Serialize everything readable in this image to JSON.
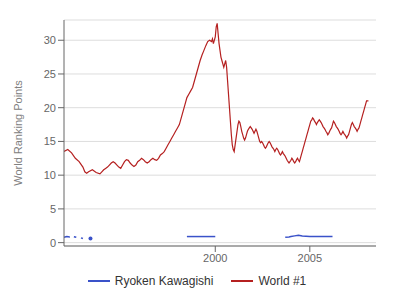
{
  "chart_data": {
    "type": "line",
    "title": "",
    "ylabel": "World Ranking Points",
    "xlim": [
      1992.0,
      2008.5
    ],
    "ylim": [
      -0.5,
      33
    ],
    "xticks": [
      2000,
      2005
    ],
    "yticks": [
      0,
      5,
      10,
      15,
      20,
      25,
      30
    ],
    "grid": true,
    "legend": "bottom",
    "series": [
      {
        "name": "Ryoken Kawagishi",
        "color": "#3a52c9",
        "line_style": "dashed",
        "marker": "none",
        "x": [
          1992.0,
          1992.15,
          1992.3,
          1992.5,
          1992.65
        ],
        "values": [
          0.8,
          0.9,
          0.85,
          0.9,
          0.8
        ]
      },
      {
        "name": "Ryoken Kawagishi",
        "color": "#3a52c9",
        "line_style": "dashed",
        "marker": "none",
        "x": [
          1992.9,
          1993.0
        ],
        "values": [
          0.7,
          0.6
        ]
      },
      {
        "name": "Ryoken Kawagishi",
        "color": "#3a52c9",
        "line_style": "none",
        "marker": "circle",
        "x": [
          1993.4
        ],
        "values": [
          0.6
        ]
      },
      {
        "name": "Ryoken Kawagishi",
        "color": "#3a52c9",
        "line_style": "solid",
        "marker": "none",
        "x": [
          1998.5,
          1998.7,
          1998.9,
          1999.0,
          1999.2,
          1999.4,
          1999.6,
          1999.8,
          2000.0
        ],
        "values": [
          0.9,
          0.9,
          0.9,
          0.9,
          0.9,
          0.9,
          0.9,
          0.9,
          0.9
        ]
      },
      {
        "name": "Ryoken Kawagishi",
        "color": "#3a52c9",
        "line_style": "solid",
        "marker": "none",
        "x": [
          2003.7,
          2003.9,
          2004.0,
          2004.2,
          2004.4,
          2004.6,
          2004.8,
          2005.0,
          2005.2,
          2005.5,
          2005.8,
          2006.0,
          2006.2
        ],
        "values": [
          0.8,
          0.85,
          0.9,
          1.0,
          1.1,
          1.0,
          0.95,
          0.9,
          0.9,
          0.9,
          0.9,
          0.9,
          0.9
        ]
      },
      {
        "name": "World #1",
        "color": "#b52020",
        "line_style": "solid",
        "marker": "none",
        "x": [
          1992.0,
          1992.2,
          1992.4,
          1992.6,
          1992.8,
          1993.0,
          1993.1,
          1993.2,
          1993.3,
          1993.5,
          1993.7,
          1993.9,
          1994.0,
          1994.1,
          1994.2,
          1994.3,
          1994.4,
          1994.5,
          1994.6,
          1994.7,
          1994.8,
          1994.9,
          1995.0,
          1995.1,
          1995.2,
          1995.3,
          1995.4,
          1995.5,
          1995.6,
          1995.7,
          1995.8,
          1995.9,
          1996.0,
          1996.1,
          1996.2,
          1996.3,
          1996.4,
          1996.5,
          1996.6,
          1996.7,
          1996.8,
          1996.9,
          1997.0,
          1997.1,
          1997.2,
          1997.3,
          1997.4,
          1997.5,
          1997.6,
          1997.7,
          1997.8,
          1997.9,
          1998.0,
          1998.1,
          1998.2,
          1998.3,
          1998.4,
          1998.5,
          1998.6,
          1998.7,
          1998.8,
          1998.9,
          1999.0,
          1999.1,
          1999.2,
          1999.3,
          1999.4,
          1999.5,
          1999.6,
          1999.7,
          1999.8,
          1999.85,
          1999.9,
          2000.0,
          2000.05,
          2000.1,
          2000.15,
          2000.2,
          2000.25,
          2000.3,
          2000.35,
          2000.4,
          2000.45,
          2000.5,
          2000.55,
          2000.6,
          2000.65,
          2000.7,
          2000.75,
          2000.8,
          2000.85,
          2000.9,
          2000.95,
          2001.0,
          2001.05,
          2001.1,
          2001.15,
          2001.2,
          2001.25,
          2001.3,
          2001.35,
          2001.4,
          2001.45,
          2001.5,
          2001.55,
          2001.6,
          2001.65,
          2001.7,
          2001.75,
          2001.8,
          2001.85,
          2001.9,
          2001.95,
          2002.0,
          2002.05,
          2002.1,
          2002.15,
          2002.2,
          2002.25,
          2002.3,
          2002.35,
          2002.4,
          2002.45,
          2002.5,
          2002.55,
          2002.6,
          2002.65,
          2002.7,
          2002.75,
          2002.8,
          2002.85,
          2002.9,
          2002.95,
          2003.0,
          2003.05,
          2003.1,
          2003.15,
          2003.2,
          2003.25,
          2003.3,
          2003.35,
          2003.4,
          2003.45,
          2003.5,
          2003.55,
          2003.6,
          2003.65,
          2003.7,
          2003.75,
          2003.8,
          2003.85,
          2003.9,
          2003.95,
          2004.0,
          2004.05,
          2004.1,
          2004.15,
          2004.2,
          2004.25,
          2004.3,
          2004.35,
          2004.4,
          2004.45,
          2004.5,
          2004.55,
          2004.6,
          2004.65,
          2004.7,
          2004.75,
          2004.8,
          2004.85,
          2004.9,
          2004.95,
          2005.0,
          2005.05,
          2005.1,
          2005.15,
          2005.2,
          2005.25,
          2005.3,
          2005.35,
          2005.4,
          2005.45,
          2005.5,
          2005.55,
          2005.6,
          2005.65,
          2005.7,
          2005.75,
          2005.8,
          2005.85,
          2005.9,
          2005.95,
          2006.0,
          2006.05,
          2006.1,
          2006.15,
          2006.2,
          2006.25,
          2006.3,
          2006.35,
          2006.4,
          2006.45,
          2006.5,
          2006.55,
          2006.6,
          2006.65,
          2006.7,
          2006.75,
          2006.8,
          2006.85,
          2006.9,
          2006.95,
          2007.0,
          2007.05,
          2007.1,
          2007.15,
          2007.2,
          2007.25,
          2007.3,
          2007.35,
          2007.4,
          2007.45,
          2007.5,
          2007.55,
          2007.6,
          2007.65,
          2007.7,
          2007.75,
          2007.8,
          2007.85,
          2007.9,
          2007.95,
          2008.0,
          2008.1
        ],
        "values": [
          13.5,
          13.8,
          13.3,
          12.5,
          12.0,
          11.2,
          10.5,
          10.3,
          10.5,
          10.8,
          10.4,
          10.2,
          10.5,
          10.8,
          11.0,
          11.2,
          11.5,
          11.8,
          12.0,
          11.8,
          11.5,
          11.2,
          11.0,
          11.5,
          12.0,
          12.3,
          12.2,
          11.8,
          11.5,
          11.3,
          11.5,
          12.0,
          12.2,
          12.5,
          12.3,
          12.0,
          11.8,
          12.0,
          12.3,
          12.5,
          12.3,
          12.2,
          12.5,
          13.0,
          13.2,
          13.5,
          14.0,
          14.5,
          15.0,
          15.5,
          16.0,
          16.5,
          17.0,
          17.5,
          18.5,
          19.5,
          20.5,
          21.5,
          22.0,
          22.5,
          23.0,
          24.0,
          25.0,
          26.0,
          27.0,
          27.8,
          28.5,
          29.2,
          29.8,
          30.0,
          29.8,
          30.2,
          29.5,
          30.5,
          32.0,
          32.5,
          31.0,
          29.5,
          28.5,
          27.5,
          27.0,
          26.5,
          26.0,
          26.5,
          27.0,
          26.0,
          24.0,
          22.0,
          20.0,
          18.0,
          16.0,
          14.5,
          13.8,
          13.5,
          14.5,
          15.5,
          16.5,
          17.5,
          18.0,
          17.8,
          17.2,
          16.5,
          16.0,
          15.5,
          15.2,
          15.5,
          16.0,
          16.5,
          16.8,
          17.0,
          17.2,
          17.0,
          16.8,
          16.5,
          16.2,
          16.5,
          16.8,
          16.5,
          16.0,
          15.5,
          15.0,
          14.8,
          15.0,
          14.8,
          14.5,
          14.2,
          14.0,
          14.2,
          14.5,
          14.8,
          15.0,
          14.8,
          14.5,
          14.2,
          14.0,
          13.8,
          13.5,
          13.8,
          14.0,
          13.8,
          13.5,
          13.2,
          13.0,
          13.2,
          13.5,
          13.2,
          13.0,
          12.8,
          12.5,
          12.2,
          12.0,
          11.8,
          12.0,
          12.2,
          12.5,
          12.3,
          12.0,
          11.8,
          12.0,
          12.3,
          12.5,
          12.2,
          12.0,
          12.5,
          13.0,
          13.5,
          14.0,
          14.5,
          15.0,
          15.5,
          16.0,
          16.5,
          17.0,
          17.5,
          18.0,
          18.2,
          18.5,
          18.3,
          18.0,
          17.8,
          17.5,
          17.8,
          18.0,
          18.2,
          18.0,
          17.8,
          17.5,
          17.2,
          17.0,
          16.8,
          16.5,
          16.3,
          16.0,
          16.2,
          16.5,
          16.8,
          17.0,
          17.5,
          18.0,
          17.8,
          17.5,
          17.2,
          17.0,
          16.8,
          16.5,
          16.2,
          16.0,
          16.2,
          16.5,
          16.2,
          16.0,
          15.8,
          15.5,
          15.8,
          16.0,
          16.5,
          17.0,
          17.5,
          17.8,
          17.5,
          17.2,
          17.0,
          16.8,
          16.5,
          16.8,
          17.0,
          17.5,
          18.0,
          18.5,
          19.0,
          19.5,
          20.0,
          20.5,
          21.0,
          21.0
        ]
      }
    ]
  }
}
